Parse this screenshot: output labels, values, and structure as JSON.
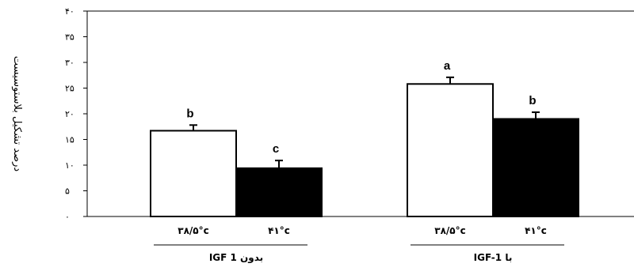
{
  "chart_data": {
    "type": "bar",
    "ylabel": "درصد تشکیل بلاستوسیست",
    "ylim": [
      0,
      40
    ],
    "yticks": [
      {
        "value": 0,
        "label": "۰"
      },
      {
        "value": 5,
        "label": "۵"
      },
      {
        "value": 10,
        "label": "۱۰"
      },
      {
        "value": 15,
        "label": "۱۵"
      },
      {
        "value": 20,
        "label": "۲۰"
      },
      {
        "value": 25,
        "label": "۲۵"
      },
      {
        "value": 30,
        "label": "۳۰"
      },
      {
        "value": 35,
        "label": "۳۵"
      },
      {
        "value": 40,
        "label": "۴۰"
      }
    ],
    "groups": [
      {
        "label": "بدون IGF 1",
        "categories": [
          "۳۸/۵°c",
          "۴۱°c"
        ]
      },
      {
        "label": "با IGF-1",
        "categories": [
          "۳۸/۵°c",
          "۴۱°c"
        ]
      }
    ],
    "series": [
      {
        "values": [
          16.7,
          25.8
        ],
        "errors": [
          1.1,
          1.3
        ],
        "letters": [
          "b",
          "a"
        ],
        "color": "#ffffff"
      },
      {
        "values": [
          9.4,
          19.0
        ],
        "errors": [
          1.5,
          1.3
        ],
        "letters": [
          "c",
          "b"
        ],
        "color": "#000000"
      }
    ],
    "grid": false
  }
}
